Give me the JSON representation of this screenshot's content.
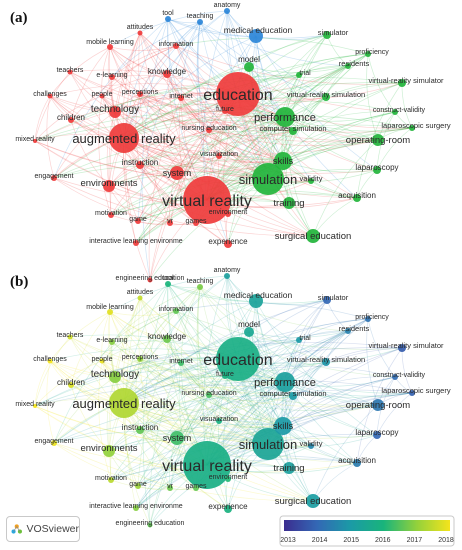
{
  "panels": [
    {
      "id": "a",
      "label": "(a)",
      "mode": "cluster"
    },
    {
      "id": "b",
      "label": "(b)",
      "mode": "year"
    }
  ],
  "clusters": {
    "red": "#ef3b3b",
    "green": "#22b43b",
    "blue": "#2b86d8"
  },
  "year_scale": {
    "ticks": [
      "2013",
      "2014",
      "2015",
      "2016",
      "2017",
      "2018"
    ],
    "colors": [
      "#3b2d8f",
      "#3368b5",
      "#1b9aa6",
      "#19b47b",
      "#93d13b",
      "#f4e41c"
    ]
  },
  "brand": {
    "name": "VOSviewer"
  },
  "terms": [
    {
      "key": "anatomy",
      "label": "anatomy",
      "cluster": "blue",
      "year": 2015.2
    },
    {
      "key": "tool",
      "label": "tool",
      "cluster": "blue",
      "year": 2016.0
    },
    {
      "key": "teaching",
      "label": "teaching",
      "cluster": "blue",
      "year": 2016.8
    },
    {
      "key": "attitudes",
      "label": "attitudes",
      "cluster": "red",
      "year": 2017.5
    },
    {
      "key": "medical_education",
      "label": "medical education",
      "cluster": "blue",
      "year": 2015.3
    },
    {
      "key": "simulator",
      "label": "simulator",
      "cluster": "green",
      "year": 2014.0
    },
    {
      "key": "proficiency",
      "label": "proficiency",
      "cluster": "green",
      "year": 2014.2
    },
    {
      "key": "mobile_learning",
      "label": "mobile learning",
      "cluster": "red",
      "year": 2017.8
    },
    {
      "key": "information",
      "label": "information",
      "cluster": "red",
      "year": 2016.6
    },
    {
      "key": "education",
      "label": "education",
      "cluster": "red",
      "year": 2015.8
    },
    {
      "key": "model",
      "label": "model",
      "cluster": "green",
      "year": 2015.5
    },
    {
      "key": "residents",
      "label": "residents",
      "cluster": "green",
      "year": 2014.5
    },
    {
      "key": "teachers",
      "label": "teachers",
      "cluster": "red",
      "year": 2017.6
    },
    {
      "key": "e_learning",
      "label": "e-learning",
      "cluster": "red",
      "year": 2016.9
    },
    {
      "key": "knowledge",
      "label": "knowledge",
      "cluster": "red",
      "year": 2016.7
    },
    {
      "key": "trial",
      "label": "trial",
      "cluster": "green",
      "year": 2015.0
    },
    {
      "key": "vr_simulator",
      "label": "virtual-reality simulator",
      "cluster": "green",
      "year": 2013.8
    },
    {
      "key": "challenges",
      "label": "challenges",
      "cluster": "red",
      "year": 2018.0
    },
    {
      "key": "people",
      "label": "people",
      "cluster": "red",
      "year": 2017.9
    },
    {
      "key": "perceptions",
      "label": "perceptions",
      "cluster": "red",
      "year": 2017.0
    },
    {
      "key": "internet",
      "label": "internet",
      "cluster": "red",
      "year": 2016.3
    },
    {
      "key": "performance",
      "label": "performance",
      "cluster": "green",
      "year": 2015.2
    },
    {
      "key": "vr_simulation",
      "label": "virtual-reality simulation",
      "cluster": "green",
      "year": 2014.9
    },
    {
      "key": "construct_validity",
      "label": "construct-validity",
      "cluster": "green",
      "year": 2014.1
    },
    {
      "key": "technology",
      "label": "technology",
      "cluster": "red",
      "year": 2016.9
    },
    {
      "key": "future",
      "label": "future",
      "cluster": "red",
      "year": 2015.9
    },
    {
      "key": "laparoscopic_surgery",
      "label": "laparoscopic surgery",
      "cluster": "green",
      "year": 2013.9
    },
    {
      "key": "children",
      "label": "children",
      "cluster": "red",
      "year": 2017.7
    },
    {
      "key": "augmented_reality",
      "label": "augmented reality",
      "cluster": "red",
      "year": 2017.3
    },
    {
      "key": "nursing_education",
      "label": "nursing education",
      "cluster": "red",
      "year": 2016.4
    },
    {
      "key": "computer_simulation",
      "label": "computer simulation",
      "cluster": "green",
      "year": 2015.0
    },
    {
      "key": "operating_room",
      "label": "operating-room",
      "cluster": "green",
      "year": 2014.3
    },
    {
      "key": "mixed_reality",
      "label": "mixed reality",
      "cluster": "red",
      "year": 2018.0
    },
    {
      "key": "instruction",
      "label": "instruction",
      "cluster": "red",
      "year": 2016.6
    },
    {
      "key": "system",
      "label": "system",
      "cluster": "red",
      "year": 2016.3
    },
    {
      "key": "visualization",
      "label": "visualization",
      "cluster": "red",
      "year": 2015.9
    },
    {
      "key": "simulation",
      "label": "simulation",
      "cluster": "green",
      "year": 2015.4
    },
    {
      "key": "skills",
      "label": "skills",
      "cluster": "green",
      "year": 2015.0
    },
    {
      "key": "laparoscopy",
      "label": "laparoscopy",
      "cluster": "green",
      "year": 2014.0
    },
    {
      "key": "engagement",
      "label": "engagement",
      "cluster": "red",
      "year": 2017.9
    },
    {
      "key": "environments",
      "label": "environments",
      "cluster": "red",
      "year": 2017.0
    },
    {
      "key": "virtual_reality",
      "label": "virtual reality",
      "cluster": "red",
      "year": 2015.8
    },
    {
      "key": "validity",
      "label": "validity",
      "cluster": "green",
      "year": 2014.6
    },
    {
      "key": "acquisition",
      "label": "acquisition",
      "cluster": "green",
      "year": 2014.4
    },
    {
      "key": "training",
      "label": "training",
      "cluster": "green",
      "year": 2015.2
    },
    {
      "key": "motivation",
      "label": "motivation",
      "cluster": "red",
      "year": 2017.4
    },
    {
      "key": "game",
      "label": "game",
      "cluster": "red",
      "year": 2017.1
    },
    {
      "key": "vr",
      "label": "vr",
      "cluster": "red",
      "year": 2016.7
    },
    {
      "key": "games",
      "label": "games",
      "cluster": "red",
      "year": 2016.6
    },
    {
      "key": "environment",
      "label": "environment",
      "cluster": "red",
      "year": 2016.1
    },
    {
      "key": "surgical_education",
      "label": "surgical education",
      "cluster": "green",
      "year": 2015.1
    },
    {
      "key": "interactive_learning",
      "label": "interactive learning environme",
      "cluster": "red",
      "year": 2016.9
    },
    {
      "key": "experience",
      "label": "experience",
      "cluster": "red",
      "year": 2015.9
    },
    {
      "key": "engineering_education",
      "label": "engineering education",
      "cluster": "red",
      "year": 2016.6
    }
  ]
}
